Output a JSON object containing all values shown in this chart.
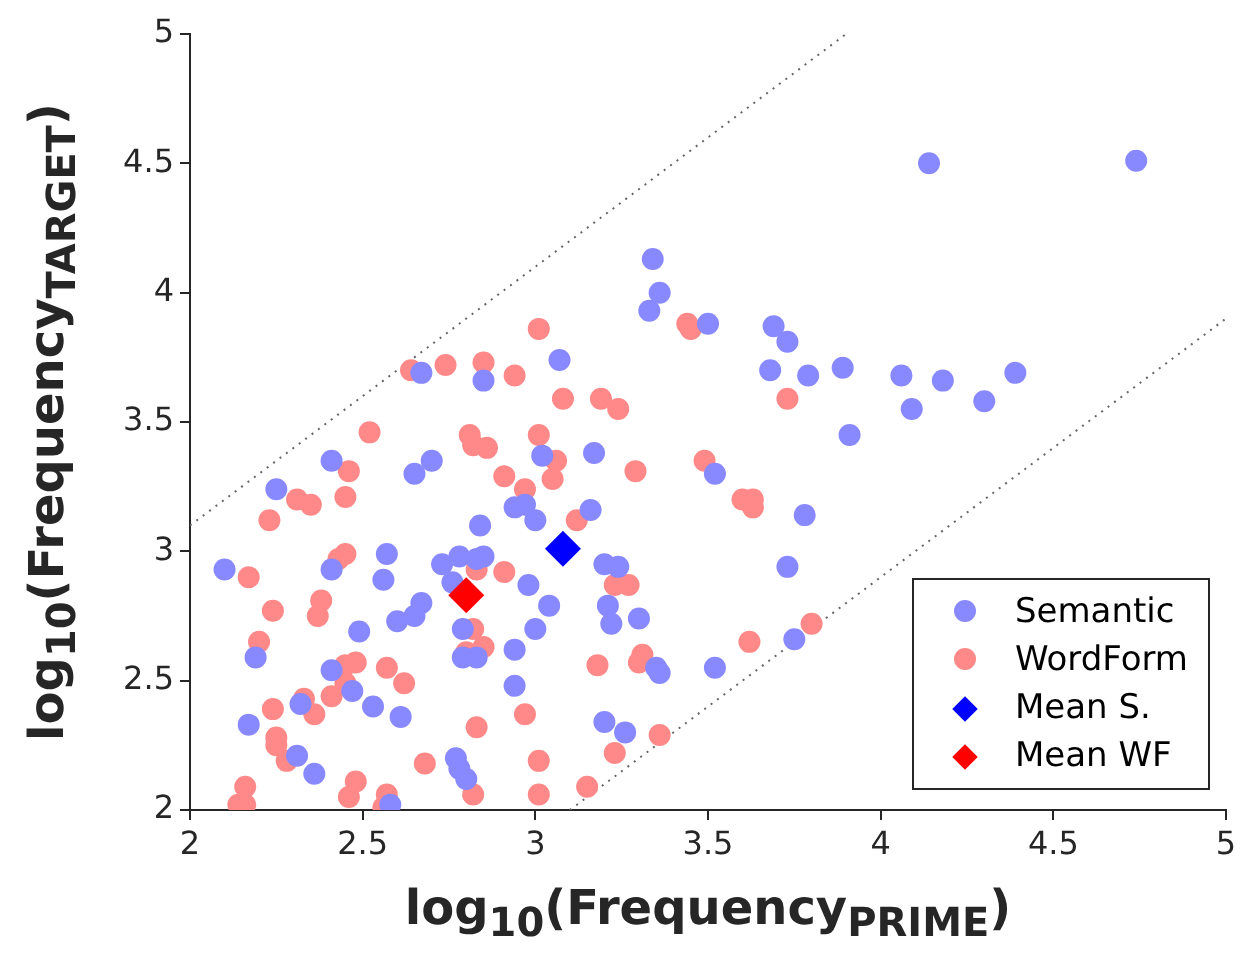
{
  "chart_data": {
    "type": "scatter",
    "xlabel": "log$_{10}$(Frequency$_{PRIME}$)",
    "ylabel": "log$_{10}$(Frequency$_{TARGET}$)",
    "xlim": [
      2,
      5
    ],
    "ylim": [
      2,
      5
    ],
    "xticks": [
      2,
      2.5,
      3,
      3.5,
      4,
      4.5,
      5
    ],
    "yticks": [
      2,
      2.5,
      3,
      3.5,
      4,
      4.5,
      5
    ],
    "grid": false,
    "legend": "bottom right",
    "series": [
      {
        "name": "Semantic",
        "color": "#8888ff",
        "marker": "circle",
        "x": [
          2.67,
          2.85,
          3.07,
          2.41,
          2.65,
          2.7,
          3.02,
          2.25,
          2.94,
          2.97,
          3.0,
          2.1,
          2.19,
          2.57,
          2.41,
          2.56,
          2.73,
          2.78,
          2.85,
          2.83,
          2.76,
          2.67,
          2.65,
          2.6,
          2.79,
          2.49,
          2.98,
          3.04,
          3.0,
          2.94,
          2.79,
          2.83,
          2.41,
          2.47,
          2.32,
          2.53,
          2.61,
          2.17,
          2.31,
          2.36,
          2.77,
          2.78,
          2.8,
          2.94,
          2.58,
          2.84,
          3.34,
          3.36,
          3.33,
          3.5,
          3.69,
          3.73,
          3.68,
          3.79,
          3.89,
          4.06,
          4.18,
          4.09,
          3.91,
          3.17,
          3.52,
          3.16,
          3.78,
          3.2,
          3.24,
          3.21,
          3.22,
          3.3,
          3.73,
          3.35,
          3.36,
          3.52,
          3.75,
          3.2,
          3.26,
          4.14,
          4.74,
          4.3,
          4.39
        ],
        "values": [
          3.69,
          3.66,
          3.74,
          3.35,
          3.3,
          3.35,
          3.37,
          3.24,
          3.17,
          3.18,
          3.12,
          2.93,
          2.59,
          2.99,
          2.93,
          2.89,
          2.95,
          2.98,
          2.98,
          2.97,
          2.88,
          2.8,
          2.75,
          2.73,
          2.7,
          2.69,
          2.87,
          2.79,
          2.7,
          2.62,
          2.59,
          2.59,
          2.54,
          2.46,
          2.41,
          2.4,
          2.36,
          2.33,
          2.21,
          2.14,
          2.2,
          2.16,
          2.12,
          2.48,
          2.02,
          3.1,
          4.13,
          4.0,
          3.93,
          3.88,
          3.87,
          3.81,
          3.7,
          3.68,
          3.71,
          3.68,
          3.66,
          3.55,
          3.45,
          3.38,
          3.3,
          3.16,
          3.14,
          2.95,
          2.94,
          2.79,
          2.72,
          2.74,
          2.94,
          2.55,
          2.53,
          2.55,
          2.66,
          2.34,
          2.3,
          4.5,
          4.51,
          3.58,
          3.69
        ]
      },
      {
        "name": "WordForm",
        "color": "#ff8888",
        "marker": "circle",
        "x": [
          3.01,
          2.64,
          2.74,
          2.85,
          2.94,
          3.08,
          2.52,
          2.81,
          2.82,
          2.86,
          3.01,
          2.46,
          3.06,
          2.91,
          2.97,
          3.05,
          2.31,
          2.35,
          2.45,
          2.23,
          2.17,
          2.43,
          2.45,
          2.24,
          2.38,
          2.37,
          2.2,
          2.91,
          2.83,
          2.82,
          2.85,
          2.8,
          2.45,
          2.48,
          2.45,
          2.57,
          2.62,
          2.41,
          2.33,
          2.36,
          2.24,
          2.25,
          2.25,
          2.28,
          2.83,
          2.97,
          2.68,
          3.01,
          2.48,
          2.46,
          2.57,
          2.56,
          2.82,
          3.01,
          2.16,
          2.14,
          2.16,
          3.12,
          3.44,
          3.45,
          3.19,
          3.24,
          3.73,
          3.29,
          3.49,
          3.6,
          3.63,
          3.63,
          3.23,
          3.27,
          3.18,
          3.31,
          3.3,
          3.62,
          3.8,
          3.36,
          3.23,
          3.15
        ],
        "values": [
          3.86,
          3.7,
          3.72,
          3.73,
          3.68,
          3.59,
          3.46,
          3.45,
          3.41,
          3.4,
          3.45,
          3.31,
          3.35,
          3.29,
          3.24,
          3.28,
          3.2,
          3.18,
          3.21,
          3.12,
          2.9,
          2.97,
          2.99,
          2.77,
          2.81,
          2.75,
          2.65,
          2.92,
          2.93,
          2.7,
          2.63,
          2.61,
          2.56,
          2.57,
          2.49,
          2.55,
          2.49,
          2.44,
          2.43,
          2.37,
          2.39,
          2.28,
          2.25,
          2.19,
          2.32,
          2.37,
          2.18,
          2.19,
          2.11,
          2.05,
          2.06,
          2.01,
          2.06,
          2.06,
          2.09,
          2.02,
          2.02,
          3.12,
          3.88,
          3.86,
          3.59,
          3.55,
          3.59,
          3.31,
          3.35,
          3.2,
          3.2,
          3.17,
          2.87,
          2.87,
          2.56,
          2.6,
          2.57,
          2.65,
          2.72,
          2.29,
          2.22,
          2.09
        ]
      },
      {
        "name": "Mean S.",
        "color": "#0000ff",
        "marker": "diamond",
        "x": [
          3.08
        ],
        "values": [
          3.01
        ]
      },
      {
        "name": "Mean WF",
        "color": "#ff0000",
        "marker": "diamond",
        "x": [
          2.8
        ],
        "values": [
          2.83
        ]
      },
      {
        "type": "line",
        "color": "#666666",
        "marker": "none",
        "line_style": "dotted",
        "x": [
          2,
          3.9
        ],
        "values": [
          3.1,
          5
        ]
      },
      {
        "type": "line",
        "color": "#666666",
        "marker": "none",
        "line_style": "dotted",
        "x": [
          3.1,
          5
        ],
        "values": [
          2,
          3.9
        ]
      }
    ]
  }
}
